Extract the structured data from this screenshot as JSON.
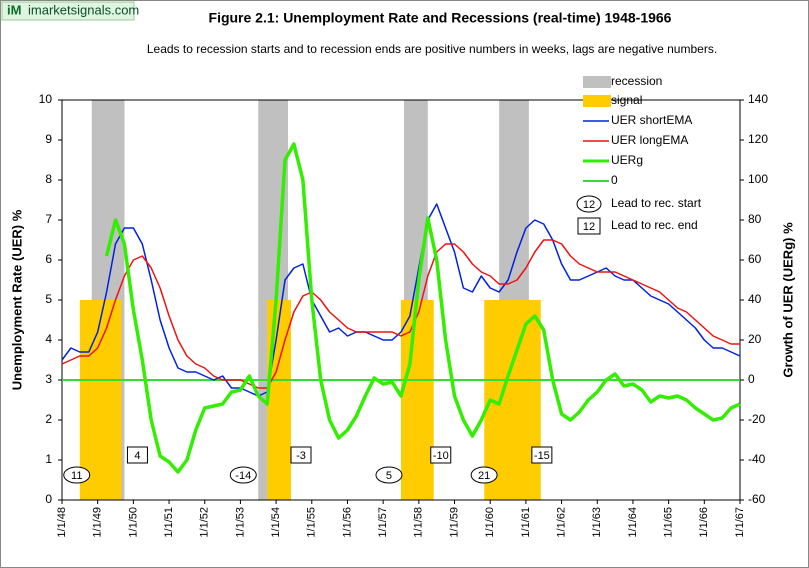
{
  "chart_data": {
    "type": "line",
    "brand": "imarketsignals.com",
    "brand_mark": "iM",
    "title": "Figure 2.1:   Unemployment  Rate and Recessions (real-time) 1948-1966",
    "subtitle": "Leads to recession starts and to recession ends are positive numbers in weeks, lags are negative numbers.",
    "y_label": "Unemployment Rate (UER) %",
    "y2_label": "Growth of UER (UERg) %",
    "ylim": [
      0,
      10
    ],
    "yticks": [
      0,
      1,
      2,
      3,
      4,
      5,
      6,
      7,
      8,
      9,
      10
    ],
    "y2lim": [
      -60,
      140
    ],
    "y2ticks": [
      -60,
      -40,
      -20,
      0,
      20,
      40,
      60,
      80,
      100,
      120,
      140
    ],
    "xlim": [
      "1/1/48",
      "1/1/67"
    ],
    "xticks": [
      "1/1/48",
      "1/1/49",
      "1/1/50",
      "1/1/51",
      "1/1/52",
      "1/1/53",
      "1/1/54",
      "1/1/55",
      "1/1/56",
      "1/1/57",
      "1/1/58",
      "1/1/59",
      "1/1/60",
      "1/1/61",
      "1/1/62",
      "1/1/63",
      "1/1/64",
      "1/1/65",
      "1/1/66",
      "1/1/67"
    ],
    "recession_name": "recession",
    "recession_color": "#c0c0c0",
    "signal_name": "signal",
    "signal_color": "#ffcc00",
    "signal_level": 5,
    "recessions": [
      {
        "start": "11/1/48",
        "end": "10/1/49",
        "lead_start": 11,
        "lead_end": 4
      },
      {
        "start": "7/1/53",
        "end": "5/1/54",
        "lead_start": -14,
        "lead_end": -3
      },
      {
        "start": "8/1/57",
        "end": "4/1/58",
        "lead_start": 5,
        "lead_end": -10
      },
      {
        "start": "4/1/60",
        "end": "2/1/61",
        "lead_start": 21,
        "lead_end": -15
      }
    ],
    "signals": [
      {
        "start": "7/1/48",
        "end": "9/1/49"
      },
      {
        "start": "10/1/53",
        "end": "6/1/54"
      },
      {
        "start": "7/1/57",
        "end": "6/1/58"
      },
      {
        "start": "11/1/59",
        "end": "6/1/61"
      }
    ],
    "x": [
      "1/1/48",
      "4/1/48",
      "7/1/48",
      "10/1/48",
      "1/1/49",
      "4/1/49",
      "7/1/49",
      "10/1/49",
      "1/1/50",
      "4/1/50",
      "7/1/50",
      "10/1/50",
      "1/1/51",
      "4/1/51",
      "7/1/51",
      "10/1/51",
      "1/1/52",
      "4/1/52",
      "7/1/52",
      "10/1/52",
      "1/1/53",
      "4/1/53",
      "7/1/53",
      "10/1/53",
      "1/1/54",
      "4/1/54",
      "7/1/54",
      "10/1/54",
      "1/1/55",
      "4/1/55",
      "7/1/55",
      "10/1/55",
      "1/1/56",
      "4/1/56",
      "7/1/56",
      "10/1/56",
      "1/1/57",
      "4/1/57",
      "7/1/57",
      "10/1/57",
      "1/1/58",
      "4/1/58",
      "7/1/58",
      "10/1/58",
      "1/1/59",
      "4/1/59",
      "7/1/59",
      "10/1/59",
      "1/1/60",
      "4/1/60",
      "7/1/60",
      "10/1/60",
      "1/1/61",
      "4/1/61",
      "7/1/61",
      "10/1/61",
      "1/1/62",
      "4/1/62",
      "7/1/62",
      "10/1/62",
      "1/1/63",
      "4/1/63",
      "7/1/63",
      "10/1/63",
      "1/1/64",
      "4/1/64",
      "7/1/64",
      "10/1/64",
      "1/1/65",
      "4/1/65",
      "7/1/65",
      "10/1/65",
      "1/1/66",
      "4/1/66",
      "7/1/66",
      "10/1/66",
      "1/1/67"
    ],
    "series": [
      {
        "name": "UER shortEMA",
        "color": "#0022dd",
        "width": 1.5,
        "values": [
          3.5,
          3.8,
          3.7,
          3.7,
          4.2,
          5.2,
          6.4,
          6.8,
          6.8,
          6.4,
          5.5,
          4.5,
          3.8,
          3.3,
          3.2,
          3.2,
          3.1,
          3.0,
          3.1,
          2.8,
          2.8,
          2.7,
          2.6,
          2.7,
          4.0,
          5.5,
          5.8,
          5.9,
          5.0,
          4.6,
          4.2,
          4.3,
          4.1,
          4.2,
          4.2,
          4.1,
          4.0,
          4.0,
          4.2,
          4.6,
          5.8,
          7.0,
          7.4,
          6.8,
          6.2,
          5.3,
          5.2,
          5.6,
          5.3,
          5.2,
          5.5,
          6.2,
          6.8,
          7.0,
          6.9,
          6.5,
          5.9,
          5.5,
          5.5,
          5.6,
          5.7,
          5.8,
          5.6,
          5.5,
          5.5,
          5.3,
          5.1,
          5.0,
          4.9,
          4.7,
          4.5,
          4.3,
          4.0,
          3.8,
          3.8,
          3.7,
          3.6
        ]
      },
      {
        "name": "UER longEMA",
        "color": "#ee1111",
        "width": 1.5,
        "values": [
          3.4,
          3.5,
          3.6,
          3.6,
          3.8,
          4.3,
          5.0,
          5.6,
          6.0,
          6.1,
          5.8,
          5.3,
          4.6,
          4.0,
          3.6,
          3.4,
          3.3,
          3.1,
          3.0,
          3.0,
          3.0,
          2.9,
          2.8,
          2.8,
          3.2,
          4.0,
          4.7,
          5.1,
          5.2,
          5.0,
          4.7,
          4.5,
          4.3,
          4.2,
          4.2,
          4.2,
          4.2,
          4.2,
          4.1,
          4.2,
          4.7,
          5.6,
          6.2,
          6.4,
          6.4,
          6.2,
          5.9,
          5.7,
          5.6,
          5.4,
          5.4,
          5.5,
          5.8,
          6.2,
          6.5,
          6.5,
          6.4,
          6.1,
          5.9,
          5.8,
          5.7,
          5.7,
          5.7,
          5.6,
          5.5,
          5.4,
          5.3,
          5.2,
          5.0,
          4.8,
          4.7,
          4.5,
          4.3,
          4.1,
          4.0,
          3.9,
          3.9
        ]
      },
      {
        "name": "UERg",
        "color": "#33ee00",
        "width": 3.5,
        "axis": "y2",
        "values": [
          null,
          null,
          null,
          null,
          null,
          62,
          80,
          68,
          35,
          10,
          -20,
          -38,
          -41,
          -46,
          -40,
          -25,
          -14,
          -13,
          -12,
          -6,
          -5,
          2,
          -8,
          -12,
          40,
          110,
          118,
          100,
          40,
          0,
          -20,
          -29,
          -25,
          -18,
          -8,
          1,
          -2,
          -1,
          -8,
          8,
          50,
          81,
          60,
          20,
          -8,
          -20,
          -28,
          -20,
          -10,
          -12,
          2,
          15,
          28,
          32,
          25,
          0,
          -17,
          -20,
          -16,
          -10,
          -6,
          0,
          3,
          -3,
          -2,
          -5,
          -11,
          -8,
          -9,
          -8,
          -10,
          -14,
          -17,
          -20,
          -19,
          -14,
          -12
        ]
      }
    ],
    "reference_lines": [
      {
        "name": "0",
        "value": 0,
        "axis": "y2",
        "color": "#33dd33"
      }
    ],
    "lead_legend": [
      {
        "sample": 12,
        "label": "Lead to rec. start",
        "shape": "oval"
      },
      {
        "sample": 12,
        "label": "Lead to rec. end",
        "shape": "box"
      }
    ]
  }
}
